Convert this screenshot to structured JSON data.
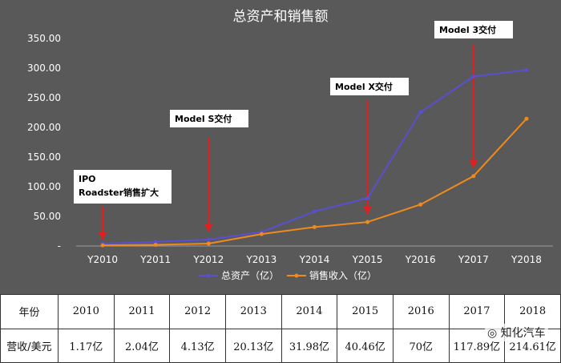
{
  "chart_data": {
    "type": "line",
    "title": "总资产和销售额",
    "categories": [
      "Y2010",
      "Y2011",
      "Y2012",
      "Y2013",
      "Y2014",
      "Y2015",
      "Y2016",
      "Y2017",
      "Y2018"
    ],
    "series": [
      {
        "name": "总资产（亿）",
        "color": "#5b4fd1",
        "values": [
          3.86,
          7.14,
          10.8,
          23.5,
          58.2,
          80.7,
          225.7,
          285.8,
          297.0
        ]
      },
      {
        "name": "销售收入（亿）",
        "color": "#f08a1c",
        "values": [
          1.17,
          2.04,
          4.13,
          20.13,
          31.98,
          40.46,
          70,
          117.89,
          214.61
        ]
      }
    ],
    "ylim": [
      0,
      350
    ],
    "yticks": [
      "-",
      "50.00",
      "100.00",
      "150.00",
      "200.00",
      "250.00",
      "300.00",
      "350.00"
    ],
    "grid": false,
    "legend": "bottom",
    "annotations": [
      {
        "lines": [
          "IPO",
          "Roadster销售扩大"
        ],
        "category": "Y2010"
      },
      {
        "lines": [
          "Model S交付"
        ],
        "category": "Y2012"
      },
      {
        "lines": [
          "Model X交付"
        ],
        "category": "Y2015"
      },
      {
        "lines": [
          "Model 3交付"
        ],
        "category": "Y2017"
      }
    ]
  },
  "table": {
    "header_label": "年份",
    "years": [
      "2010",
      "2011",
      "2012",
      "2013",
      "2014",
      "2015",
      "2016",
      "2017",
      "2018"
    ],
    "row_label": "营收/美元",
    "values": [
      "1.17亿",
      "2.04亿",
      "4.13亿",
      "20.13亿",
      "31.98亿",
      "40.46亿",
      "70亿",
      "117.89亿",
      "214.61亿"
    ]
  },
  "watermark": "知化汽车"
}
